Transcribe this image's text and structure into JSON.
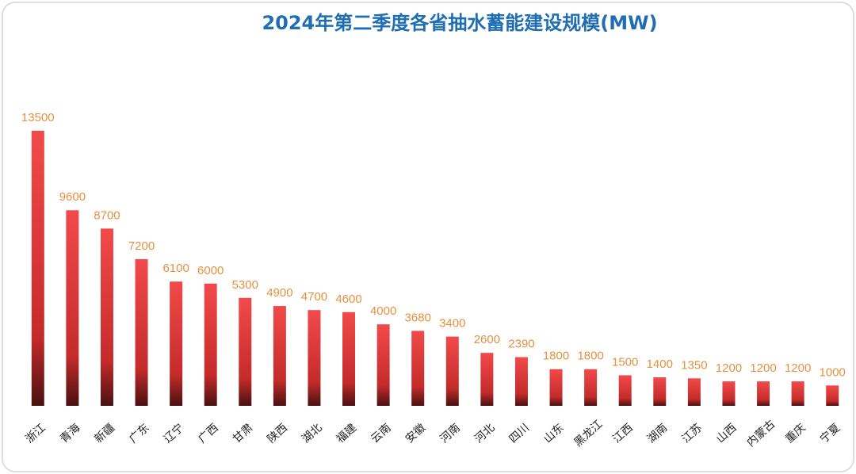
{
  "chart_data": {
    "type": "bar",
    "title": "2024年第二季度各省抽水蓄能建设规模(MW)",
    "categories": [
      "浙江",
      "青海",
      "新疆",
      "广东",
      "辽宁",
      "广西",
      "甘肃",
      "陕西",
      "湖北",
      "福建",
      "云南",
      "安徽",
      "河南",
      "河北",
      "四川",
      "山东",
      "黑龙江",
      "江西",
      "湖南",
      "江苏",
      "山西",
      "内蒙古",
      "重庆",
      "宁夏"
    ],
    "values": [
      13500,
      9600,
      8700,
      7200,
      6100,
      6000,
      5300,
      4900,
      4700,
      4600,
      4000,
      3680,
      3400,
      2600,
      2390,
      1800,
      1800,
      1500,
      1400,
      1350,
      1200,
      1200,
      1200,
      1000
    ],
    "color": "#e83a3a"
  }
}
